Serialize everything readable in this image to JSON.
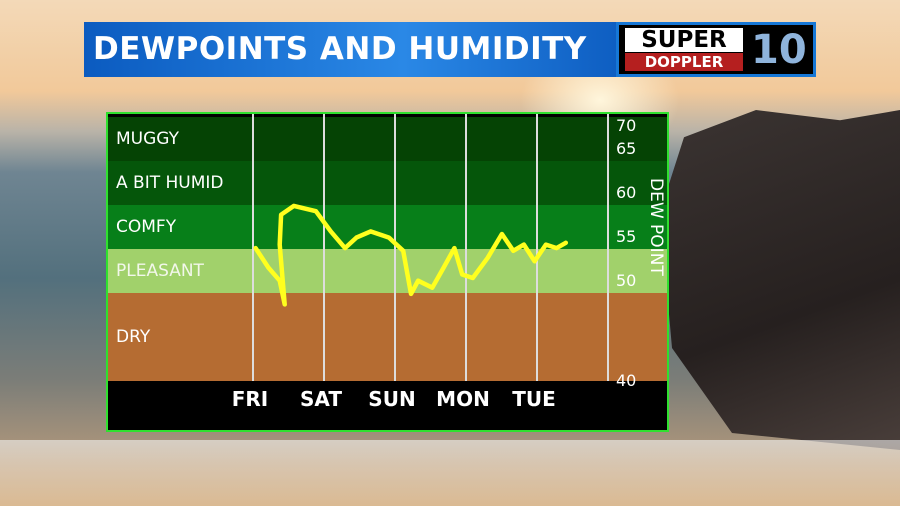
{
  "title": "DEWPOINTS AND HUMIDITY",
  "logo": {
    "line1": "SUPER",
    "line2": "DOPPLER",
    "number": "10"
  },
  "chart_data": {
    "type": "line",
    "title": "DEWPOINTS AND HUMIDITY",
    "ylabel": "DEW POINT",
    "ylim": [
      40,
      70
    ],
    "yticks": [
      70,
      65,
      60,
      55,
      50,
      40
    ],
    "categories": [
      "FRI",
      "SAT",
      "SUN",
      "MON",
      "TUE"
    ],
    "bands": [
      {
        "label": "MUGGY",
        "from": 65,
        "to": 70,
        "color": "#054304"
      },
      {
        "label": "A BIT HUMID",
        "from": 60,
        "to": 65,
        "color": "#05560a"
      },
      {
        "label": "COMFY",
        "from": 55,
        "to": 60,
        "color": "#077f19"
      },
      {
        "label": "PLEASANT",
        "from": 50,
        "to": 55,
        "color": "#a1d16b"
      },
      {
        "label": "DRY",
        "from": 40,
        "to": 50,
        "color": "#b56c32"
      }
    ],
    "line_color": "#ffff1e",
    "series": [
      {
        "x": [
          0.05,
          0.23,
          0.39,
          0.46,
          0.39,
          0.41,
          0.59,
          0.9,
          1.11,
          1.31,
          1.47,
          1.67,
          1.93,
          2.13,
          2.24,
          2.34,
          2.54,
          2.7,
          2.85,
          2.96,
          3.11,
          3.32,
          3.52,
          3.68,
          3.83,
          3.98,
          4.14,
          4.29,
          4.42
        ],
        "y": [
          55.1,
          52.9,
          51.4,
          48.7,
          55.5,
          58.9,
          59.9,
          59.3,
          57,
          55.1,
          56.3,
          57,
          56.3,
          54.8,
          49.9,
          51.4,
          50.6,
          52.9,
          55.1,
          52.1,
          51.7,
          54,
          56.7,
          54.8,
          55.5,
          53.6,
          55.5,
          55.1,
          55.7
        ]
      }
    ]
  }
}
